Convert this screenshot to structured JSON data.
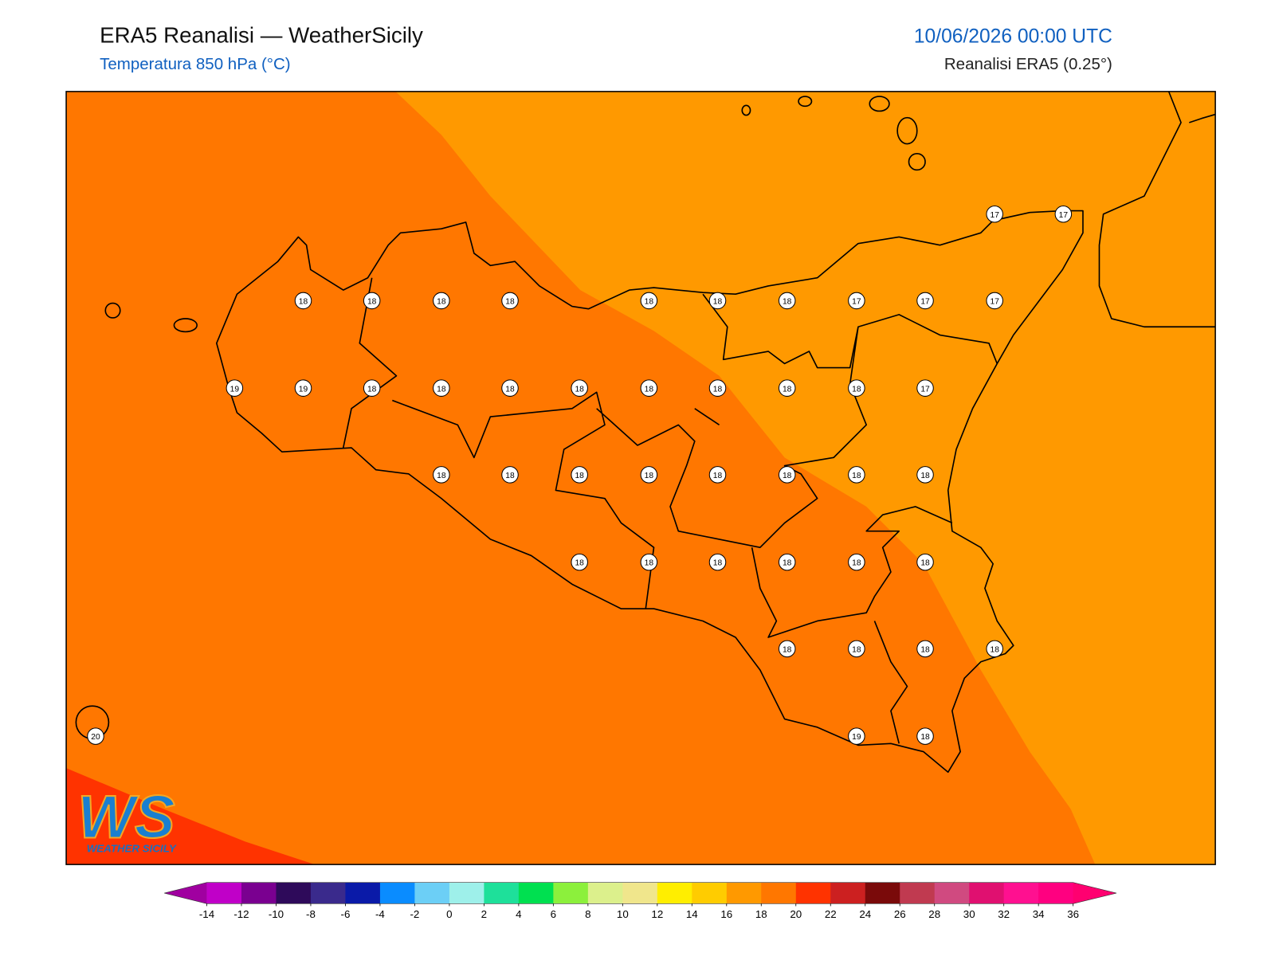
{
  "header": {
    "title": "ERA5 Reanalisi — WeatherSicily",
    "subtitle": "Temperatura 850 hPa (°C)",
    "datetime": "10/06/2026 00:00 UTC",
    "source": "Reanalisi ERA5 (0.25°)"
  },
  "stations": [
    17,
    17,
    18,
    18,
    18,
    18,
    18,
    18,
    18,
    17,
    17,
    17,
    19,
    19,
    18,
    18,
    18,
    18,
    18,
    18,
    18,
    18,
    17,
    18,
    18,
    18,
    18,
    18,
    18,
    18,
    18,
    18,
    18,
    18,
    18,
    18,
    18,
    18,
    18,
    18,
    18,
    20,
    19,
    18
  ],
  "logo": {
    "mark": "WS",
    "name": "WEATHER SICILY"
  },
  "colorbar": {
    "ticks": [
      -14,
      -12,
      -10,
      -8,
      -6,
      -4,
      -2,
      0,
      2,
      4,
      6,
      8,
      10,
      12,
      14,
      16,
      18,
      20,
      22,
      24,
      26,
      28,
      30,
      32,
      34,
      36
    ],
    "colors": [
      "#c000c8",
      "#7a0090",
      "#2e0a5a",
      "#3a2a8c",
      "#0a1aa8",
      "#0a8cff",
      "#6ccff6",
      "#9ef0ea",
      "#1ee09a",
      "#00e050",
      "#8cf03c",
      "#dcf08c",
      "#f0e68c",
      "#ffee00",
      "#ffcc00",
      "#ff9900",
      "#ff7700",
      "#ff3300",
      "#cc2020",
      "#7a0a0a",
      "#c03a50",
      "#d04a80",
      "#e01070",
      "#ff1090",
      "#ff0080"
    ],
    "extend_colors": [
      "#a000a0",
      "#ff0070"
    ]
  }
}
